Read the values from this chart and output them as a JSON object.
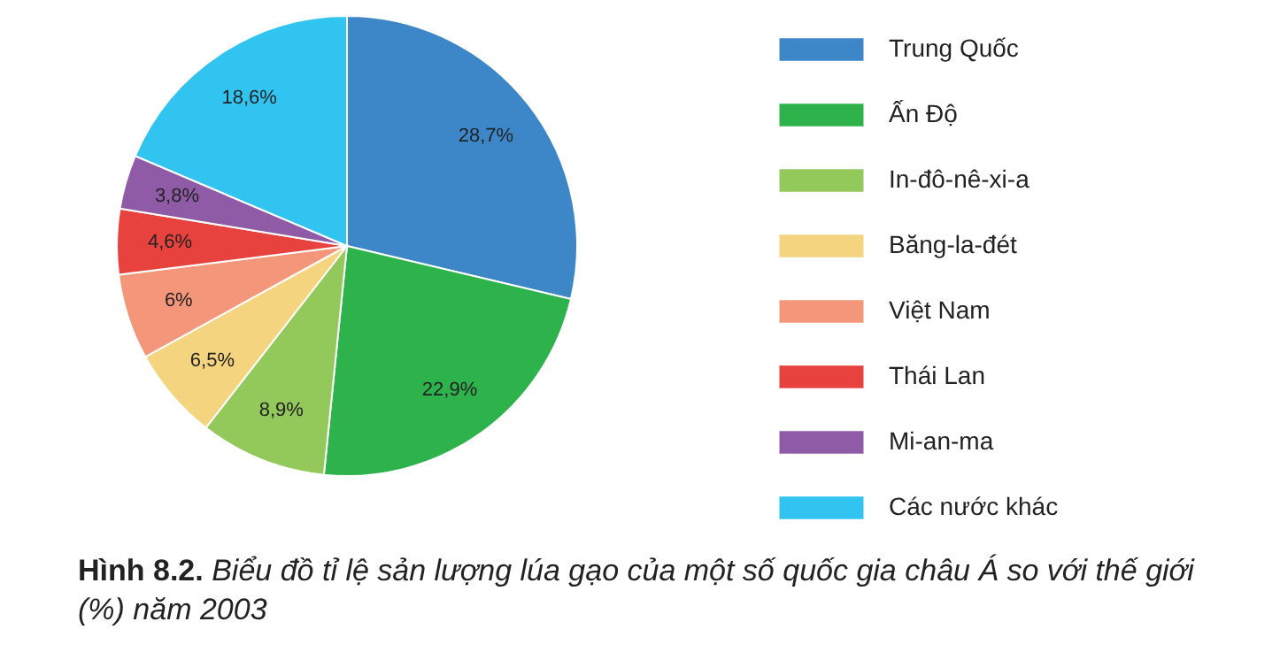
{
  "chart_data": {
    "type": "pie",
    "title": "Biểu đồ tỉ lệ sản lượng lúa gạo của một số quốc gia châu Á so với thế giới (%) năm 2003",
    "annotations": [
      "Hình 8.2."
    ],
    "categories": [
      "Trung Quốc",
      "Ấn Độ",
      "In-đô-nê-xi-a",
      "Băng-la-đét",
      "Việt Nam",
      "Thái Lan",
      "Mi-an-ma",
      "Các nước khác"
    ],
    "values": [
      28.7,
      22.9,
      8.9,
      6.5,
      6,
      4.6,
      3.8,
      18.6
    ],
    "value_labels": [
      "28,7%",
      "22,9%",
      "8,9%",
      "6,5%",
      "6%",
      "4,6%",
      "3,8%",
      "18,6%"
    ],
    "colors": [
      "#3d87c9",
      "#2eb24b",
      "#93c85b",
      "#f5d47f",
      "#f4967a",
      "#e8423e",
      "#8f5ba7",
      "#32c4f1"
    ],
    "legend": "right"
  }
}
